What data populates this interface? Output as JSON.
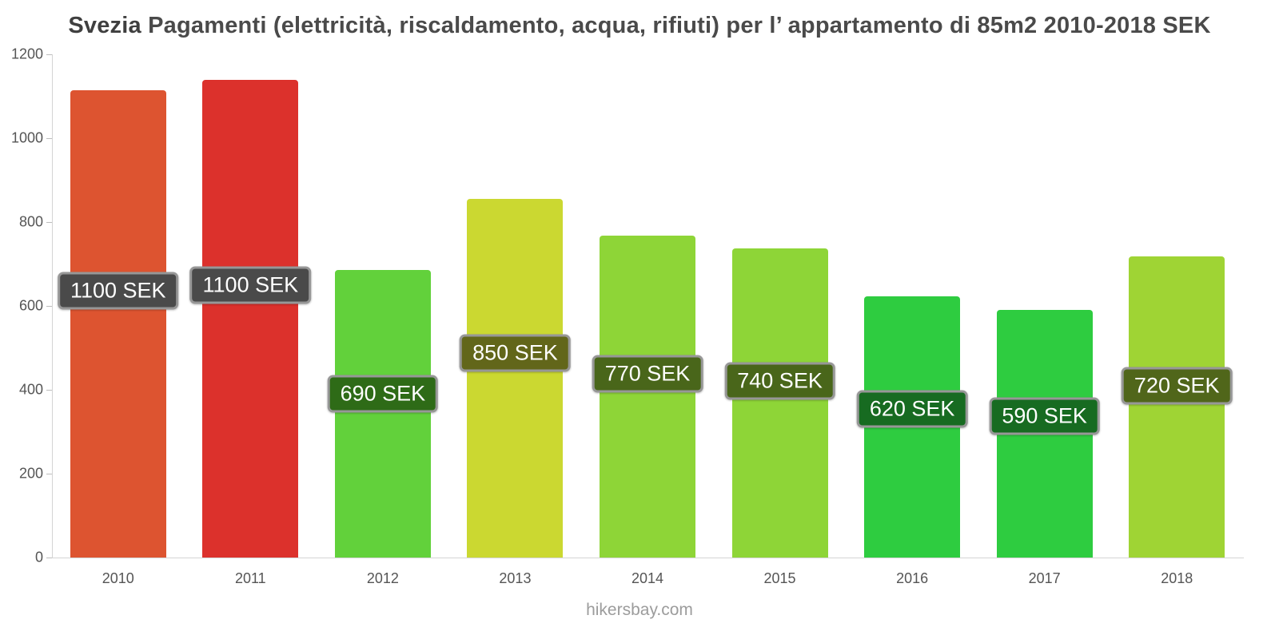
{
  "title": {
    "prefix": "Svezia",
    "rest": " Pagamenti (elettricità, riscaldamento, acqua, rifiuti) per l’ appartamento di 85m2 2010-2018 SEK"
  },
  "footer": {
    "text": "hikersbay.com"
  },
  "chart_data": {
    "type": "bar",
    "title": "Svezia Pagamenti (elettricità, riscaldamento, acqua, rifiuti) per l’ appartamento di 85m2 2010-2018 SEK",
    "xlabel": "",
    "ylabel": "",
    "unit": "SEK",
    "categories": [
      "2010",
      "2011",
      "2012",
      "2013",
      "2014",
      "2015",
      "2016",
      "2017",
      "2018"
    ],
    "values": [
      1100,
      1100,
      690,
      850,
      770,
      740,
      620,
      590,
      720
    ],
    "bar_top_values": [
      1115,
      1140,
      686,
      855,
      767,
      738,
      622,
      590,
      718
    ],
    "labels": [
      "1100 SEK",
      "1100 SEK",
      "690 SEK",
      "850 SEK",
      "770 SEK",
      "740 SEK",
      "620 SEK",
      "590 SEK",
      "720 SEK"
    ],
    "bar_colors": [
      "#dd5430",
      "#dc312c",
      "#62d13b",
      "#cbd831",
      "#8ed537",
      "#8ed537",
      "#2ecc40",
      "#2ecc40",
      "#9fd434"
    ],
    "label_bg_colors": [
      "#4a4a4a",
      "#4a4a4a",
      "#2e6b17",
      "#62661a",
      "#49661a",
      "#49661a",
      "#176b21",
      "#176b21",
      "#50661a"
    ],
    "ylim": [
      0,
      1200
    ],
    "yticks": [
      0,
      200,
      400,
      600,
      800,
      1000,
      1200
    ],
    "grid": false,
    "legend": null
  }
}
